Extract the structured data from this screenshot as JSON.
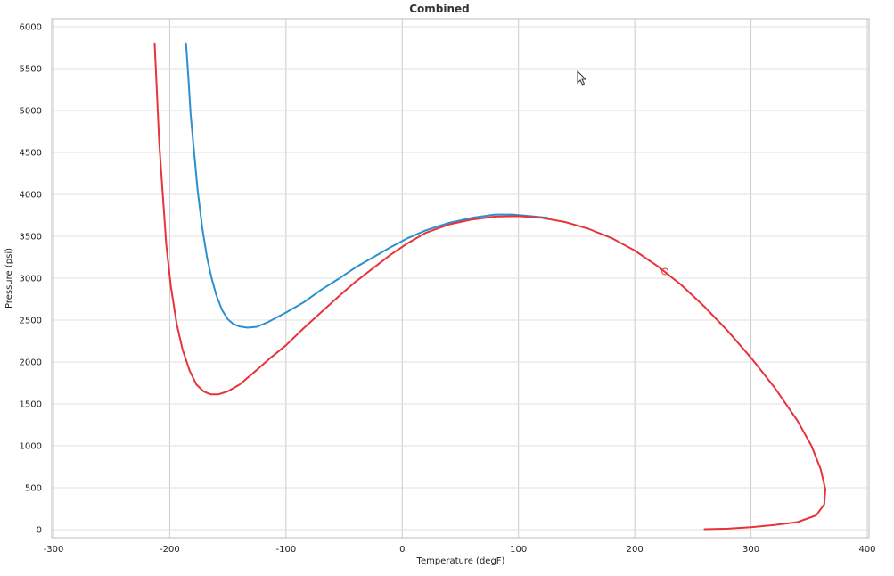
{
  "chart_data": {
    "type": "line",
    "title": "Combined",
    "xlabel": "Temperature (degF)",
    "ylabel": "Pressure (psi)",
    "xlim": [
      -300,
      400
    ],
    "ylim": [
      0,
      6000
    ],
    "x_ticks": [
      "-300",
      "-200",
      "-100",
      "0",
      "100",
      "200",
      "300",
      "400"
    ],
    "y_ticks": [
      "0",
      "500",
      "1000",
      "1500",
      "2000",
      "2500",
      "3000",
      "3500",
      "4000",
      "4500",
      "5000",
      "5500",
      "6000"
    ],
    "grid": true,
    "colors": {
      "series_a": "#2c8fce",
      "series_b": "#e8333a"
    },
    "series": [
      {
        "color": "#2c8fce",
        "points": [
          [
            -186,
            5800
          ],
          [
            -184,
            5400
          ],
          [
            -182,
            4950
          ],
          [
            -179,
            4500
          ],
          [
            -176,
            4050
          ],
          [
            -172,
            3600
          ],
          [
            -168,
            3250
          ],
          [
            -164,
            3000
          ],
          [
            -160,
            2800
          ],
          [
            -155,
            2620
          ],
          [
            -150,
            2510
          ],
          [
            -145,
            2450
          ],
          [
            -140,
            2425
          ],
          [
            -133,
            2410
          ],
          [
            -125,
            2420
          ],
          [
            -115,
            2480
          ],
          [
            -100,
            2590
          ],
          [
            -85,
            2710
          ],
          [
            -70,
            2860
          ],
          [
            -55,
            2990
          ],
          [
            -40,
            3130
          ],
          [
            -25,
            3250
          ],
          [
            -10,
            3370
          ],
          [
            5,
            3480
          ],
          [
            20,
            3570
          ],
          [
            40,
            3660
          ],
          [
            60,
            3720
          ],
          [
            80,
            3760
          ],
          [
            95,
            3760
          ],
          [
            110,
            3740
          ],
          [
            125,
            3720
          ]
        ]
      },
      {
        "color": "#e8333a",
        "points": [
          [
            -213,
            5800
          ],
          [
            -211,
            5200
          ],
          [
            -209,
            4600
          ],
          [
            -206,
            4000
          ],
          [
            -203,
            3400
          ],
          [
            -199,
            2900
          ],
          [
            -194,
            2450
          ],
          [
            -189,
            2150
          ],
          [
            -183,
            1900
          ],
          [
            -177,
            1730
          ],
          [
            -171,
            1650
          ],
          [
            -165,
            1615
          ],
          [
            -158,
            1615
          ],
          [
            -150,
            1650
          ],
          [
            -140,
            1730
          ],
          [
            -128,
            1870
          ],
          [
            -115,
            2030
          ],
          [
            -100,
            2200
          ],
          [
            -85,
            2400
          ],
          [
            -70,
            2590
          ],
          [
            -55,
            2780
          ],
          [
            -40,
            2960
          ],
          [
            -25,
            3120
          ],
          [
            -10,
            3280
          ],
          [
            5,
            3420
          ],
          [
            20,
            3540
          ],
          [
            40,
            3640
          ],
          [
            60,
            3700
          ],
          [
            80,
            3735
          ],
          [
            100,
            3740
          ],
          [
            120,
            3720
          ],
          [
            140,
            3670
          ],
          [
            160,
            3590
          ],
          [
            180,
            3480
          ],
          [
            200,
            3330
          ],
          [
            220,
            3140
          ],
          [
            240,
            2920
          ],
          [
            260,
            2660
          ],
          [
            280,
            2370
          ],
          [
            300,
            2050
          ],
          [
            320,
            1700
          ],
          [
            340,
            1300
          ],
          [
            352,
            1000
          ],
          [
            360,
            720
          ],
          [
            364,
            480
          ],
          [
            363,
            300
          ],
          [
            356,
            170
          ],
          [
            340,
            90
          ],
          [
            320,
            55
          ],
          [
            300,
            30
          ],
          [
            280,
            12
          ],
          [
            260,
            5
          ]
        ]
      }
    ],
    "marker": {
      "x": 226,
      "y": 3080
    }
  }
}
